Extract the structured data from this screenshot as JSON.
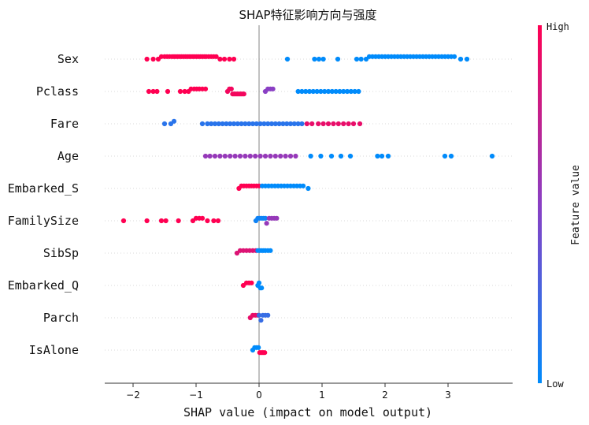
{
  "chart_data": {
    "type": "scatter",
    "subtype": "shap-beeswarm",
    "title": "SHAP特征影响方向与强度",
    "xlabel": "SHAP value (impact on model output)",
    "xlim": [
      -2.45,
      4.0
    ],
    "xticks": [
      -2,
      -1,
      0,
      1,
      2,
      3
    ],
    "features": [
      "Sex",
      "Pclass",
      "Fare",
      "Age",
      "Embarked_S",
      "FamilySize",
      "SibSp",
      "Embarked_Q",
      "Parch",
      "IsAlone"
    ],
    "colorbar": {
      "label": "Feature value",
      "high_label": "High",
      "low_label": "Low",
      "high_color": "#ff0052",
      "low_color": "#008bfb"
    },
    "gridlines": "dotted horizontal per feature",
    "zero_line": true,
    "series": [
      {
        "feature": "Sex",
        "clusters": [
          {
            "values": [
              -1.78,
              -1.68,
              -1.6,
              -1.55,
              -1.5,
              -1.46,
              -1.42,
              -1.38,
              -1.35,
              -1.32,
              -1.29,
              -1.26,
              -1.23,
              -1.2,
              -1.17,
              -1.14,
              -1.11,
              -1.08,
              -1.05,
              -1.02,
              -0.99,
              -0.96,
              -0.93,
              -0.9,
              -0.87,
              -0.84,
              -0.8,
              -0.76,
              -0.72,
              -0.68,
              -0.62,
              -0.55,
              -0.47,
              -0.4
            ],
            "level": 1.0
          },
          {
            "values": [
              0.45,
              0.88,
              0.95,
              1.02,
              1.25,
              1.55,
              1.62,
              1.7,
              1.75,
              1.8,
              1.85,
              1.9,
              1.95,
              2.0,
              2.05,
              2.1,
              2.15,
              2.2,
              2.25,
              2.3,
              2.35,
              2.4,
              2.45,
              2.5,
              2.55,
              2.6,
              2.65,
              2.7,
              2.75,
              2.8,
              2.85,
              2.9,
              2.95,
              3.0,
              3.05,
              3.1,
              3.2,
              3.3
            ],
            "level": 0.0
          }
        ]
      },
      {
        "feature": "Pclass",
        "clusters": [
          {
            "values": [
              -1.75,
              -1.68,
              -1.62,
              -1.45,
              -1.25,
              -1.18,
              -1.12,
              -1.08,
              -1.03,
              -0.99,
              -0.95,
              -0.9,
              -0.85
            ],
            "level": 1.0
          },
          {
            "values": [
              -0.5,
              -0.47,
              -0.44,
              -0.42,
              -0.4,
              -0.38,
              -0.36,
              -0.34,
              -0.32,
              -0.3,
              -0.28,
              -0.26,
              -0.24
            ],
            "level": 0.95
          },
          {
            "values": [
              0.1,
              0.14,
              0.18,
              0.22
            ],
            "level": 0.5
          },
          {
            "values": [
              0.62,
              0.68,
              0.74,
              0.8,
              0.86,
              0.92,
              0.98,
              1.04,
              1.1,
              1.16,
              1.22,
              1.28,
              1.34,
              1.4,
              1.46,
              1.52,
              1.58
            ],
            "level": 0.0
          }
        ]
      },
      {
        "feature": "Fare",
        "clusters": [
          {
            "values": [
              -1.5,
              -1.4,
              -1.35,
              -0.9,
              -0.82,
              -0.76,
              -0.7,
              -0.64,
              -0.58,
              -0.52,
              -0.46,
              -0.4,
              -0.34,
              -0.28,
              -0.22,
              -0.16,
              -0.1,
              -0.04,
              0.02,
              0.08,
              0.14,
              0.2,
              0.26,
              0.32,
              0.38,
              0.44,
              0.5,
              0.56,
              0.62,
              0.68
            ],
            "level": 0.15
          },
          {
            "values": [
              0.76,
              0.84,
              0.94,
              1.02,
              1.1,
              1.18,
              1.26,
              1.34,
              1.42,
              1.5,
              1.6
            ],
            "level": 0.9
          }
        ]
      },
      {
        "feature": "Age",
        "clusters": [
          {
            "values": [
              -0.85,
              -0.78,
              -0.7,
              -0.62,
              -0.54,
              -0.46,
              -0.38,
              -0.3,
              -0.22,
              -0.14,
              -0.06,
              0.02,
              0.1,
              0.18,
              0.26,
              0.34,
              0.42,
              0.5,
              0.58
            ],
            "level": 0.55
          },
          {
            "values": [
              0.82,
              0.98,
              1.15,
              1.3,
              1.45,
              1.88,
              1.95,
              2.05,
              2.95,
              3.05,
              3.7
            ],
            "level": 0.0
          }
        ]
      },
      {
        "feature": "Embarked_S",
        "clusters": [
          {
            "values": [
              -0.32,
              -0.28,
              -0.24,
              -0.2,
              -0.16,
              -0.12,
              -0.08,
              -0.04,
              0.0
            ],
            "level": 1.0
          },
          {
            "values": [
              0.05,
              0.1,
              0.15,
              0.2,
              0.25,
              0.3,
              0.35,
              0.4,
              0.45,
              0.5,
              0.55,
              0.6,
              0.65,
              0.7,
              0.78
            ],
            "level": 0.0
          }
        ]
      },
      {
        "feature": "FamilySize",
        "clusters": [
          {
            "values": [
              -2.15,
              -1.78,
              -1.55,
              -1.48,
              -1.28,
              -1.05,
              -1.0,
              -0.95,
              -0.9,
              -0.82,
              -0.72,
              -0.65
            ],
            "level": 1.0
          },
          {
            "values": [
              -0.05,
              -0.02,
              0.01,
              0.04,
              0.07,
              0.1
            ],
            "level": 0.05
          },
          {
            "values": [
              0.12,
              0.16,
              0.2,
              0.24,
              0.28
            ],
            "level": 0.55
          }
        ]
      },
      {
        "feature": "SibSp",
        "clusters": [
          {
            "values": [
              -0.35,
              -0.3,
              -0.25,
              -0.2,
              -0.15,
              -0.1,
              -0.05
            ],
            "level": 0.85
          },
          {
            "values": [
              -0.02,
              0.01,
              0.04,
              0.07,
              0.1,
              0.14,
              0.18
            ],
            "level": 0.0
          }
        ]
      },
      {
        "feature": "Embarked_Q",
        "clusters": [
          {
            "values": [
              -0.25,
              -0.2,
              -0.16,
              -0.12
            ],
            "level": 1.0
          },
          {
            "values": [
              -0.02,
              0.0,
              0.02,
              0.04
            ],
            "level": 0.0
          }
        ]
      },
      {
        "feature": "Parch",
        "clusters": [
          {
            "values": [
              -0.14,
              -0.1,
              -0.06,
              -0.02
            ],
            "level": 0.9
          },
          {
            "values": [
              0.0,
              0.03,
              0.06,
              0.1,
              0.14
            ],
            "level": 0.2
          }
        ]
      },
      {
        "feature": "IsAlone",
        "clusters": [
          {
            "values": [
              -0.1,
              -0.07,
              -0.04,
              -0.01
            ],
            "level": 0.0
          },
          {
            "values": [
              0.01,
              0.03,
              0.05,
              0.07,
              0.09
            ],
            "level": 1.0
          }
        ]
      }
    ]
  }
}
